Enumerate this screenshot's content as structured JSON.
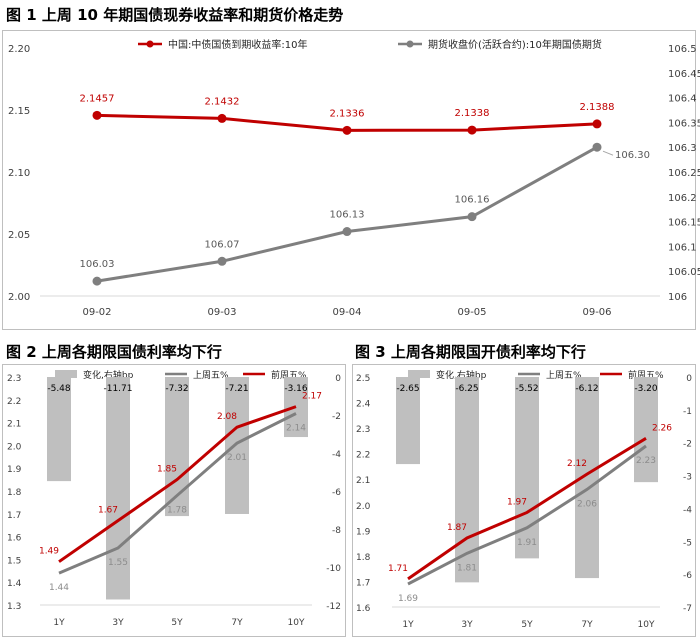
{
  "colors": {
    "red": "#c00000",
    "gray": "#7f7f7f",
    "bar": "#bfbfbf",
    "tick": "#404040"
  },
  "chart_data": [
    {
      "id": "fig1",
      "type": "line",
      "title": "图 1 上周 10 年期国债现券收益率和期货价格走势",
      "categories": [
        "09-02",
        "09-03",
        "09-04",
        "09-05",
        "09-06"
      ],
      "ylim": [
        2.0,
        2.2
      ],
      "y_ticks": [
        "2.00",
        "2.05",
        "2.10",
        "2.15",
        "2.20"
      ],
      "y2lim": [
        106.0,
        106.5
      ],
      "y2_ticks": [
        "106",
        "106.05",
        "106.1",
        "106.15",
        "106.2",
        "106.25",
        "106.3",
        "106.35",
        "106.4",
        "106.45",
        "106.5"
      ],
      "legend_position": "top",
      "series": [
        {
          "name": "中国:中债国债到期收益率:10年",
          "axis": "left",
          "color": "#c00000",
          "values": [
            2.1457,
            2.1432,
            2.1336,
            2.1338,
            2.1388
          ],
          "labels": [
            "2.1457",
            "2.1432",
            "2.1336",
            "2.1338",
            "2.1388"
          ]
        },
        {
          "name": "期货收盘价(活跃合约):10年期国债期货",
          "axis": "right",
          "color": "#7f7f7f",
          "values": [
            106.03,
            106.07,
            106.13,
            106.16,
            106.3
          ],
          "labels": [
            "106.03",
            "106.07",
            "106.13",
            "106.16",
            "106.30"
          ]
        }
      ]
    },
    {
      "id": "fig2",
      "type": "bar",
      "title": "图 2 上周各期限国债利率均下行",
      "categories": [
        "1Y",
        "3Y",
        "5Y",
        "7Y",
        "10Y"
      ],
      "ylim": [
        1.3,
        2.3
      ],
      "y_ticks": [
        "1.3",
        "1.4",
        "1.5",
        "1.6",
        "1.7",
        "1.8",
        "1.9",
        "2.0",
        "2.1",
        "2.2",
        "2.3"
      ],
      "y2lim": [
        -12,
        0
      ],
      "y2_ticks": [
        "-12",
        "-10",
        "-8",
        "-6",
        "-4",
        "-2",
        "0"
      ],
      "legend_position": "top",
      "series": [
        {
          "name": "变化,右轴bp",
          "axis": "right",
          "kind": "bar",
          "color": "#bfbfbf",
          "values": [
            -5.48,
            -11.71,
            -7.32,
            -7.21,
            -3.16
          ],
          "labels": [
            "-5.48",
            "-11.71",
            "-7.32",
            "-7.21",
            "-3.16"
          ]
        },
        {
          "name": "上周五%",
          "axis": "left",
          "kind": "line",
          "color": "#7f7f7f",
          "values": [
            1.44,
            1.55,
            1.78,
            2.01,
            2.14
          ],
          "labels": [
            "1.44",
            "1.55",
            "1.78",
            "2.01",
            "2.14"
          ]
        },
        {
          "name": "前周五%",
          "axis": "left",
          "kind": "line",
          "color": "#c00000",
          "values": [
            1.49,
            1.67,
            1.85,
            2.08,
            2.17
          ],
          "labels": [
            "1.49",
            "1.67",
            "1.85",
            "2.08",
            "2.17"
          ]
        }
      ]
    },
    {
      "id": "fig3",
      "type": "bar",
      "title": "图 3 上周各期限国开债利率均下行",
      "categories": [
        "1Y",
        "3Y",
        "5Y",
        "7Y",
        "10Y"
      ],
      "ylim": [
        1.6,
        2.5
      ],
      "y_ticks": [
        "1.6",
        "1.7",
        "1.8",
        "1.9",
        "2.0",
        "2.1",
        "2.2",
        "2.3",
        "2.4",
        "2.5"
      ],
      "y2lim": [
        -7,
        0
      ],
      "y2_ticks": [
        "-7",
        "-6",
        "-5",
        "-4",
        "-3",
        "-2",
        "-1",
        "0"
      ],
      "legend_position": "top",
      "series": [
        {
          "name": "变化,右轴bp",
          "axis": "right",
          "kind": "bar",
          "color": "#bfbfbf",
          "values": [
            -2.65,
            -6.25,
            -5.52,
            -6.12,
            -3.2
          ],
          "labels": [
            "-2.65",
            "-6.25",
            "-5.52",
            "-6.12",
            "-3.20"
          ]
        },
        {
          "name": "上周五%",
          "axis": "left",
          "kind": "line",
          "color": "#7f7f7f",
          "values": [
            1.69,
            1.81,
            1.91,
            2.06,
            2.23
          ],
          "labels": [
            "1.69",
            "1.81",
            "1.91",
            "2.06",
            "2.23"
          ]
        },
        {
          "name": "前周五%",
          "axis": "left",
          "kind": "line",
          "color": "#c00000",
          "values": [
            1.71,
            1.87,
            1.97,
            2.12,
            2.26
          ],
          "labels": [
            "1.71",
            "1.87",
            "1.97",
            "2.12",
            "2.26"
          ]
        }
      ]
    }
  ]
}
